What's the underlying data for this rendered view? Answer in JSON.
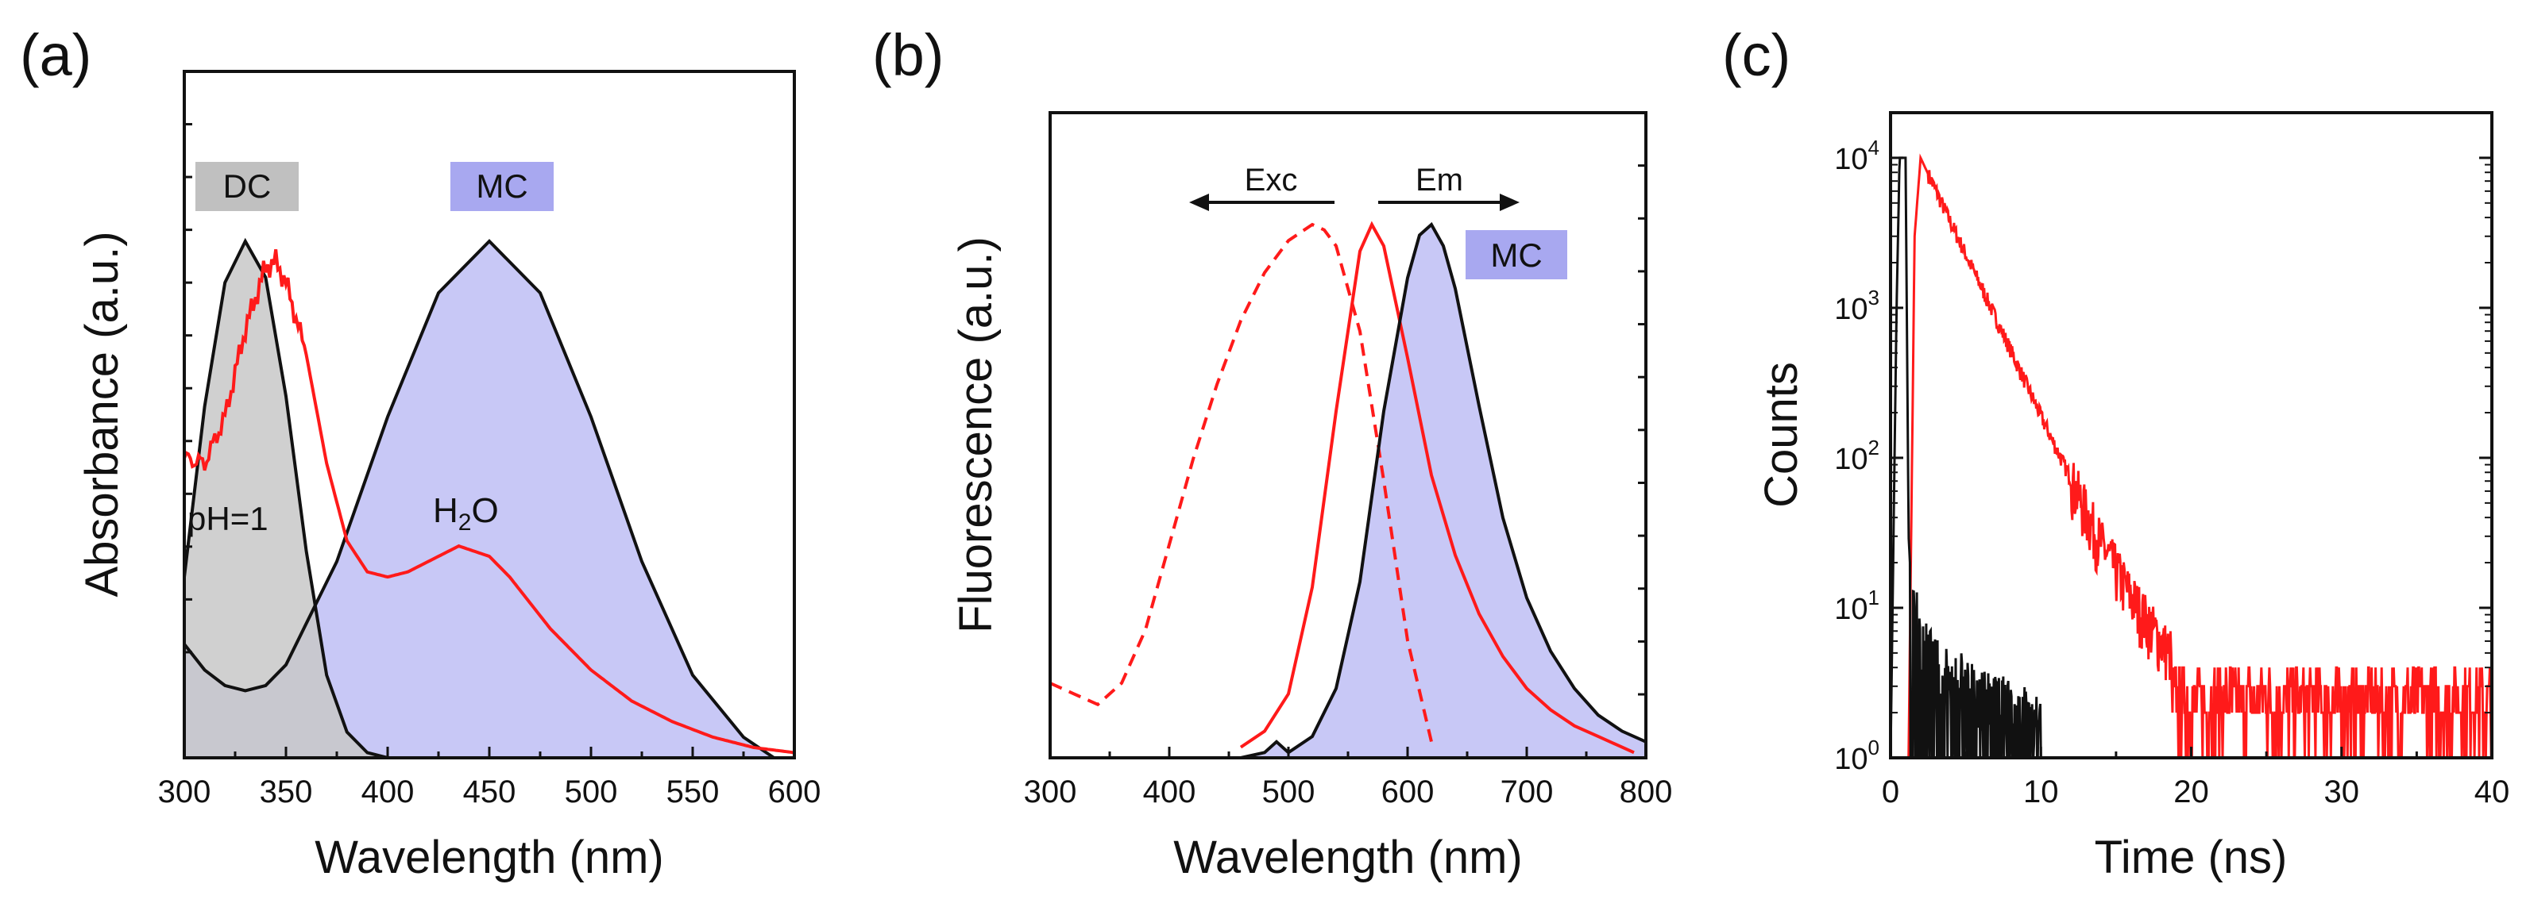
{
  "colors": {
    "red": "#ff1a1a",
    "black": "#111111",
    "mc_fill": "#c8c8f6",
    "mc_label": "#a8a8f0",
    "dc_fill": "#c8c8c8",
    "dc_label": "#c0c0c0",
    "overlap": "#9c9cc8"
  },
  "chart_data": [
    {
      "panel": "(a)",
      "type": "line",
      "xlabel": "Wavelength (nm)",
      "ylabel": "Absorbance (a.u.)",
      "xlim": [
        300,
        600
      ],
      "ylim": [
        0,
        1.0
      ],
      "xticks": [
        "300",
        "350",
        "400",
        "450",
        "500",
        "550",
        "600"
      ],
      "labels": {
        "dc": "DC",
        "mc": "MC",
        "ph": "pH=1",
        "h2o_h": "H",
        "h2o_sub": "2",
        "h2o_o": "O"
      },
      "series": [
        {
          "name": "DC (pH=1) absorbance, grey filled",
          "x": [
            300,
            310,
            320,
            330,
            340,
            350,
            360,
            370,
            380,
            390,
            400
          ],
          "y": [
            0.35,
            0.68,
            0.92,
            1.0,
            0.93,
            0.7,
            0.4,
            0.16,
            0.05,
            0.01,
            0.0
          ]
        },
        {
          "name": "MC absorbance, blue filled",
          "x": [
            300,
            310,
            320,
            330,
            340,
            350,
            375,
            400,
            425,
            450,
            475,
            500,
            525,
            550,
            575,
            590
          ],
          "y": [
            0.22,
            0.17,
            0.14,
            0.13,
            0.14,
            0.18,
            0.38,
            0.66,
            0.9,
            1.0,
            0.9,
            0.66,
            0.38,
            0.16,
            0.04,
            0.0
          ]
        },
        {
          "name": "H2O (red)",
          "x": [
            300,
            310,
            320,
            330,
            340,
            345,
            350,
            360,
            370,
            380,
            390,
            400,
            410,
            420,
            435,
            450,
            460,
            470,
            480,
            490,
            500,
            520,
            540,
            560,
            580,
            600
          ],
          "y": [
            0.58,
            0.57,
            0.66,
            0.83,
            0.95,
            0.96,
            0.92,
            0.78,
            0.57,
            0.42,
            0.36,
            0.35,
            0.36,
            0.38,
            0.41,
            0.39,
            0.35,
            0.3,
            0.25,
            0.21,
            0.17,
            0.11,
            0.07,
            0.04,
            0.02,
            0.01
          ]
        }
      ]
    },
    {
      "panel": "(b)",
      "type": "line",
      "xlabel": "Wavelength (nm)",
      "ylabel": "Fluorescence (a.u.)",
      "xlim": [
        300,
        800
      ],
      "ylim": [
        0,
        1.0
      ],
      "xticks": [
        "300",
        "400",
        "500",
        "600",
        "700",
        "800"
      ],
      "labels": {
        "exc": "Exc",
        "em": "Em",
        "mc": "MC"
      },
      "series": [
        {
          "name": "Excitation (red dashed)",
          "x": [
            300,
            320,
            340,
            360,
            380,
            400,
            420,
            440,
            460,
            480,
            500,
            520,
            530,
            540,
            560,
            580,
            600,
            620
          ],
          "y": [
            0.14,
            0.12,
            0.1,
            0.14,
            0.24,
            0.4,
            0.56,
            0.7,
            0.82,
            0.91,
            0.97,
            1.0,
            0.99,
            0.96,
            0.8,
            0.52,
            0.22,
            0.03
          ]
        },
        {
          "name": "Emission red (solid)",
          "x": [
            460,
            480,
            500,
            520,
            540,
            560,
            570,
            580,
            600,
            620,
            640,
            660,
            680,
            700,
            720,
            740,
            760,
            780,
            790
          ],
          "y": [
            0.02,
            0.05,
            0.12,
            0.32,
            0.65,
            0.95,
            1.0,
            0.96,
            0.75,
            0.53,
            0.38,
            0.27,
            0.19,
            0.13,
            0.09,
            0.06,
            0.04,
            0.02,
            0.01
          ]
        },
        {
          "name": "MC emission (black, filled)",
          "x": [
            460,
            480,
            490,
            500,
            520,
            540,
            560,
            580,
            600,
            610,
            620,
            630,
            640,
            660,
            680,
            700,
            720,
            740,
            760,
            780,
            800
          ],
          "y": [
            0.0,
            0.01,
            0.03,
            0.01,
            0.04,
            0.13,
            0.33,
            0.65,
            0.9,
            0.98,
            1.0,
            0.96,
            0.88,
            0.66,
            0.45,
            0.3,
            0.2,
            0.13,
            0.08,
            0.05,
            0.03
          ]
        }
      ]
    },
    {
      "panel": "(c)",
      "type": "line",
      "xlabel": "Time (ns)",
      "ylabel": "Counts",
      "xlim": [
        0,
        40
      ],
      "ylog": true,
      "ylim": [
        1,
        20000
      ],
      "xticks": [
        "0",
        "10",
        "20",
        "30",
        "40"
      ],
      "yticks": [
        {
          "base": "10",
          "exp": "0"
        },
        {
          "base": "10",
          "exp": "1"
        },
        {
          "base": "10",
          "exp": "2"
        },
        {
          "base": "10",
          "exp": "3"
        },
        {
          "base": "10",
          "exp": "4"
        }
      ],
      "series": [
        {
          "name": "Instrument response (black)",
          "x": [
            0,
            0.4,
            0.6,
            1.0,
            1.2,
            1.5,
            2.0,
            2.5,
            3,
            4,
            5,
            6,
            7,
            8,
            9,
            10
          ],
          "y": [
            1,
            1000,
            10000,
            10000,
            30,
            8,
            4,
            3,
            2.5,
            2,
            2,
            1.5,
            1.5,
            1.5,
            1.2,
            1
          ]
        },
        {
          "name": "Fluorescence decay (red)",
          "x": [
            0,
            1.2,
            1.6,
            2.0,
            4,
            6,
            8,
            10,
            12,
            14,
            16,
            18,
            20,
            22,
            24,
            26,
            28,
            30,
            32,
            34,
            36,
            38,
            40
          ],
          "y": [
            1,
            1,
            3000,
            10000,
            3700,
            1400,
            520,
            190,
            72,
            27,
            12,
            6,
            3.5,
            2.5,
            2.5,
            2.5,
            2.5,
            2.5,
            2.5,
            2.5,
            2.5,
            2.5,
            2.5
          ]
        }
      ]
    }
  ]
}
